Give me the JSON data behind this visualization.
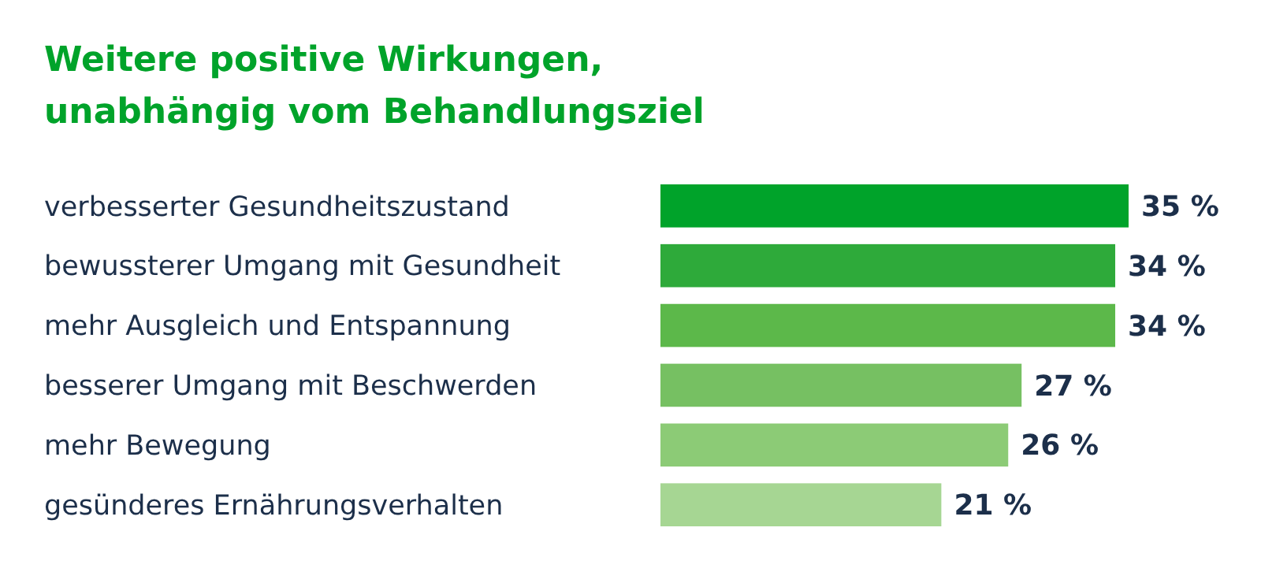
{
  "chart_data": {
    "type": "bar",
    "orientation": "horizontal",
    "title": "Weitere positive Wirkungen,\nunabhängig vom Behandlungsziel",
    "categories": [
      "verbesserter Gesundheitszustand",
      "bewussterer Umgang mit Gesundheit",
      "mehr Ausgleich und Entspannung",
      "besserer Umgang mit Beschwerden",
      "mehr Bewegung",
      "gesünderes Ernährungsverhalten"
    ],
    "values": [
      35,
      34,
      34,
      27,
      26,
      21
    ],
    "colors": [
      "#00a32a",
      "#2eaa3a",
      "#5cb84a",
      "#76c062",
      "#8ccb76",
      "#a6d693"
    ],
    "value_labels": [
      "35 %",
      "34 %",
      "34 %",
      "27 %",
      "26 %",
      "21 %"
    ]
  }
}
